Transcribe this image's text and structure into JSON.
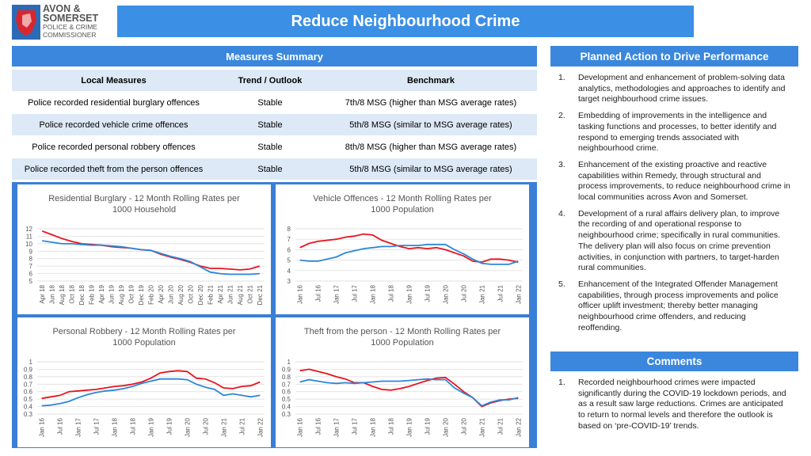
{
  "logo": {
    "line1": "AVON &",
    "line2": "SOMERSET",
    "line3": "POLICE & CRIME",
    "line4": "COMMISSIONER"
  },
  "header": {
    "title": "Reduce Neighbourhood Crime"
  },
  "measures": {
    "title": "Measures Summary",
    "columns": [
      "Local Measures",
      "Trend / Outlook",
      "Benchmark"
    ],
    "rows": [
      [
        "Police recorded residential burglary offences",
        "Stable",
        "7th/8 MSG (higher than MSG average rates)"
      ],
      [
        "Police recorded vehicle crime offences",
        "Stable",
        "5th/8 MSG (similar to MSG average rates)"
      ],
      [
        "Police recorded personal robbery offences",
        "Stable",
        "8th/8 MSG (higher than MSG average rates)"
      ],
      [
        "Police recorded theft from the person offences",
        "Stable",
        "5th/8 MSG (similar to MSG average rates)"
      ]
    ]
  },
  "actions": {
    "title": "Planned Action to Drive Performance",
    "items": [
      {
        "number": "1.",
        "text": "Development and enhancement of problem-solving data analytics, methodologies and approaches to identify and target neighbourhood crime issues."
      },
      {
        "number": "2.",
        "text": "Embedding of improvements in the intelligence and tasking functions and processes, to better identify and respond to emerging trends associated with neighbourhood crime."
      },
      {
        "number": "3.",
        "text": "Enhancement of the existing proactive and reactive capabilities within Remedy, through structural and process improvements, to reduce neighbourhood crime in local communities across Avon and Somerset."
      },
      {
        "number": "4.",
        "text": "Development of a rural affairs delivery plan, to improve the recording of and operational response to neighbourhood crime; specifically in rural communities. The delivery plan will also focus on crime prevention activities, in conjunction with partners, to target-harden rural communities."
      },
      {
        "number": "5.",
        "text": "Enhancement of the Integrated Offender Management capabilities, through process improvements and police officer uplift investment; thereby better managing neighbourhood crime offenders, and reducing reoffending."
      }
    ]
  },
  "comments": {
    "title": "Comments",
    "items": [
      {
        "number": "1.",
        "text": "Recorded neighbourhood crimes were impacted significantly during the COVID-19 lockdown periods, and as a result saw large reductions. Crimes are anticipated to return to normal levels and therefore the outlook is based on ‘pre-COVID-19’ trends."
      }
    ]
  },
  "chart_data": [
    {
      "type": "line",
      "title": "Residential Burglary - 12 Month Rolling Rates per 1000 Household",
      "categories": [
        "Apr 18",
        "Jun 18",
        "Aug 18",
        "Oct 18",
        "Dec 18",
        "Feb 19",
        "Apr 19",
        "Jun 19",
        "Aug 19",
        "Oct 19",
        "Dec 19",
        "Feb 20",
        "Apr 20",
        "Jun 20",
        "Aug 20",
        "Oct 20",
        "Dec 20",
        "Feb 21",
        "Apr 21",
        "Jun 21",
        "Aug 21",
        "Oct 21",
        "Dec 21"
      ],
      "ylim": [
        5,
        12
      ],
      "yticks": [
        5,
        6,
        7,
        8,
        9,
        10,
        11,
        12
      ],
      "grid": true,
      "series": [
        {
          "color": "#e8141e",
          "values": [
            11.7,
            11.2,
            10.7,
            10.3,
            10.0,
            9.9,
            9.8,
            9.6,
            9.5,
            9.4,
            9.2,
            9.1,
            8.6,
            8.2,
            7.9,
            7.5,
            7.0,
            6.7,
            6.7,
            6.6,
            6.5,
            6.6,
            7.0
          ]
        },
        {
          "color": "#2f86d6",
          "values": [
            10.4,
            10.2,
            10.0,
            10.0,
            9.9,
            9.8,
            9.8,
            9.7,
            9.6,
            9.4,
            9.2,
            9.1,
            8.7,
            8.3,
            8.0,
            7.6,
            6.9,
            6.2,
            6.0,
            5.9,
            5.9,
            5.9,
            6.0
          ]
        }
      ]
    },
    {
      "type": "line",
      "title": "Vehicle Offences - 12 Month Rolling Rates per 1000 Population",
      "categories": [
        "Jan 16",
        null,
        "Jul 16",
        null,
        "Jan 17",
        null,
        "Jul 17",
        null,
        "Jan 18",
        null,
        "Jul 18",
        null,
        "Jan 19",
        null,
        "Jul 19",
        null,
        "Jan 20",
        null,
        "Jul 20",
        null,
        "Jan 21",
        null,
        "Jul 21",
        null,
        "Jan 22"
      ],
      "ylim": [
        3,
        8
      ],
      "yticks": [
        3,
        4,
        5,
        6,
        7,
        8
      ],
      "grid": true,
      "series": [
        {
          "color": "#e8141e",
          "values": [
            6.2,
            6.6,
            6.8,
            6.9,
            7.0,
            7.2,
            7.3,
            7.5,
            7.4,
            6.9,
            6.6,
            6.3,
            6.1,
            6.2,
            6.1,
            6.2,
            6.0,
            5.7,
            5.4,
            4.9,
            4.8,
            5.1,
            5.1,
            5.0,
            4.8
          ]
        },
        {
          "color": "#2f86d6",
          "values": [
            5.0,
            4.9,
            4.9,
            5.1,
            5.3,
            5.7,
            5.9,
            6.1,
            6.2,
            6.3,
            6.3,
            6.4,
            6.4,
            6.4,
            6.5,
            6.5,
            6.5,
            6.0,
            5.6,
            5.1,
            4.7,
            4.6,
            4.6,
            4.6,
            4.9
          ]
        }
      ]
    },
    {
      "type": "line",
      "title": "Personal Robbery - 12 Month Rolling Rates per 1000 Population",
      "categories": [
        "Jan 16",
        null,
        "Jul 16",
        null,
        "Jan 17",
        null,
        "Jul 17",
        null,
        "Jan 18",
        null,
        "Jul 18",
        null,
        "Jan 19",
        null,
        "Jul 19",
        null,
        "Jan 20",
        null,
        "Jul 20",
        null,
        "Jan 21",
        null,
        "Jul 21",
        null,
        "Jan 22"
      ],
      "ylim": [
        0.3,
        1
      ],
      "yticks": [
        0.3,
        0.4,
        0.5,
        0.6,
        0.7,
        0.8,
        0.9,
        1
      ],
      "grid": true,
      "series": [
        {
          "color": "#e8141e",
          "values": [
            0.51,
            0.53,
            0.55,
            0.6,
            0.61,
            0.62,
            0.63,
            0.65,
            0.67,
            0.68,
            0.7,
            0.73,
            0.78,
            0.85,
            0.87,
            0.88,
            0.87,
            0.78,
            0.77,
            0.72,
            0.65,
            0.64,
            0.67,
            0.68,
            0.73
          ]
        },
        {
          "color": "#2f86d6",
          "values": [
            0.41,
            0.42,
            0.44,
            0.47,
            0.52,
            0.56,
            0.59,
            0.61,
            0.62,
            0.64,
            0.67,
            0.71,
            0.74,
            0.77,
            0.77,
            0.77,
            0.76,
            0.7,
            0.66,
            0.63,
            0.55,
            0.57,
            0.55,
            0.53,
            0.55
          ]
        }
      ]
    },
    {
      "type": "line",
      "title": "Theft from the person - 12 Month Rolling Rates per 1000 Population",
      "categories": [
        "Jan 16",
        null,
        "Jul 16",
        null,
        "Jan 17",
        null,
        "Jul 17",
        null,
        "Jan 18",
        null,
        "Jul 18",
        null,
        "Jan 19",
        null,
        "Jul 19",
        null,
        "Jan 20",
        null,
        "Jul 20",
        null,
        "Jan 21",
        null,
        "Jul 21",
        null,
        "Jan 22"
      ],
      "ylim": [
        0.3,
        1
      ],
      "yticks": [
        0.3,
        0.4,
        0.5,
        0.6,
        0.7,
        0.8,
        0.9,
        1
      ],
      "grid": true,
      "series": [
        {
          "color": "#e8141e",
          "values": [
            0.88,
            0.9,
            0.87,
            0.84,
            0.8,
            0.77,
            0.72,
            0.72,
            0.67,
            0.63,
            0.62,
            0.64,
            0.67,
            0.71,
            0.75,
            0.78,
            0.79,
            0.7,
            0.6,
            0.52,
            0.4,
            0.45,
            0.48,
            0.5,
            0.51
          ]
        },
        {
          "color": "#2f86d6",
          "values": [
            0.73,
            0.76,
            0.74,
            0.72,
            0.71,
            0.72,
            0.71,
            0.72,
            0.73,
            0.74,
            0.74,
            0.74,
            0.75,
            0.76,
            0.77,
            0.76,
            0.76,
            0.65,
            0.58,
            0.52,
            0.41,
            0.46,
            0.49,
            0.49,
            0.52
          ]
        }
      ]
    }
  ]
}
